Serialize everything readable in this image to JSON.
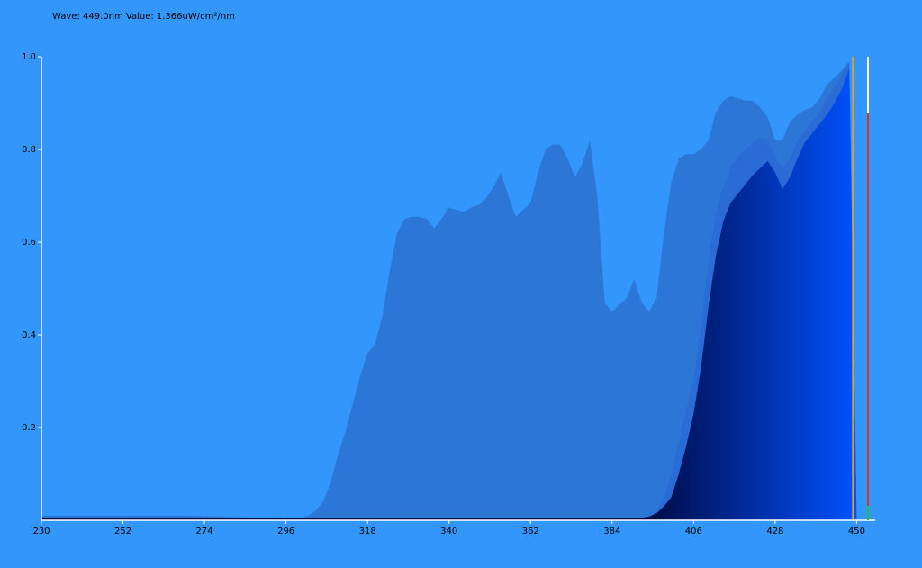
{
  "chart_data": {
    "type": "area",
    "header": "Wave: 449.0nm Value: 1.366uW/cm²/nm",
    "background": "#3396fb",
    "axis_color": "#ffffff",
    "cursor": 449,
    "cursor_color": "#e0a030",
    "xlim": [
      230,
      455
    ],
    "ylim": [
      0,
      1
    ],
    "xticks": [
      230,
      252,
      274,
      296,
      318,
      340,
      362,
      384,
      406,
      428,
      450
    ],
    "yticks": [
      0.2,
      0.4,
      0.6,
      0.8,
      {
        "value": 1,
        "label": "1.0"
      }
    ],
    "x": [
      230,
      250,
      270,
      290,
      300,
      302,
      304,
      306,
      308,
      310,
      312,
      314,
      316,
      318,
      320,
      322,
      324,
      326,
      328,
      330,
      332,
      334,
      336,
      338,
      340,
      342,
      344,
      346,
      348,
      350,
      352,
      354,
      356,
      358,
      360,
      362,
      364,
      366,
      368,
      370,
      372,
      374,
      376,
      378,
      380,
      382,
      384,
      386,
      388,
      390,
      392,
      394,
      396,
      398,
      400,
      402,
      404,
      406,
      408,
      410,
      412,
      414,
      416,
      418,
      420,
      422,
      424,
      426,
      428,
      430,
      432,
      434,
      436,
      438,
      440,
      442,
      444,
      446,
      448,
      450
    ],
    "series": [
      {
        "color": "#2c77d6",
        "values": [
          0.01,
          0.01,
          0.01,
          0.005,
          0.005,
          0.01,
          0.02,
          0.04,
          0.08,
          0.14,
          0.19,
          0.25,
          0.31,
          0.36,
          0.38,
          0.44,
          0.54,
          0.62,
          0.65,
          0.655,
          0.655,
          0.65,
          0.63,
          0.65,
          0.675,
          0.67,
          0.665,
          0.675,
          0.68,
          0.695,
          0.72,
          0.75,
          0.7,
          0.655,
          0.67,
          0.685,
          0.75,
          0.8,
          0.81,
          0.81,
          0.78,
          0.74,
          0.77,
          0.82,
          0.7,
          0.47,
          0.45,
          0.465,
          0.48,
          0.52,
          0.47,
          0.45,
          0.48,
          0.62,
          0.73,
          0.78,
          0.79,
          0.79,
          0.8,
          0.82,
          0.88,
          0.905,
          0.915,
          0.91,
          0.905,
          0.905,
          0.89,
          0.87,
          0.82,
          0.82,
          0.86,
          0.875,
          0.885,
          0.89,
          0.91,
          0.94,
          0.955,
          0.97,
          0.99,
          0
        ]
      },
      {
        "color": "#2a6bd6",
        "values": [
          0.005,
          0.005,
          0.005,
          0.005,
          0.005,
          0.005,
          0.005,
          0.005,
          0.005,
          0.005,
          0.005,
          0.005,
          0.005,
          0.005,
          0.005,
          0.005,
          0.005,
          0.005,
          0.005,
          0.005,
          0.005,
          0.005,
          0.005,
          0.005,
          0.005,
          0.005,
          0.005,
          0.005,
          0.005,
          0.005,
          0.005,
          0.005,
          0.005,
          0.005,
          0.005,
          0.005,
          0.005,
          0.005,
          0.005,
          0.005,
          0.005,
          0.005,
          0.005,
          0.005,
          0.005,
          0.005,
          0.005,
          0.005,
          0.005,
          0.005,
          0.005,
          0.005,
          0.02,
          0.05,
          0.1,
          0.17,
          0.24,
          0.3,
          0.42,
          0.56,
          0.66,
          0.72,
          0.76,
          0.785,
          0.8,
          0.815,
          0.825,
          0.82,
          0.785,
          0.76,
          0.78,
          0.82,
          0.84,
          0.86,
          0.88,
          0.91,
          0.935,
          0.96,
          0.99,
          0
        ]
      },
      {
        "gradient": [
          "#000c4a",
          "#0052ff"
        ],
        "values": [
          0.005,
          0.005,
          0.005,
          0.005,
          0.005,
          0.005,
          0.005,
          0.005,
          0.005,
          0.005,
          0.005,
          0.005,
          0.005,
          0.005,
          0.005,
          0.005,
          0.005,
          0.005,
          0.005,
          0.005,
          0.005,
          0.005,
          0.005,
          0.005,
          0.005,
          0.005,
          0.005,
          0.005,
          0.005,
          0.005,
          0.005,
          0.005,
          0.005,
          0.005,
          0.005,
          0.005,
          0.005,
          0.005,
          0.005,
          0.005,
          0.005,
          0.005,
          0.005,
          0.005,
          0.005,
          0.005,
          0.005,
          0.005,
          0.005,
          0.005,
          0.005,
          0.008,
          0.015,
          0.03,
          0.05,
          0.1,
          0.16,
          0.23,
          0.33,
          0.46,
          0.57,
          0.645,
          0.685,
          0.705,
          0.725,
          0.745,
          0.76,
          0.775,
          0.75,
          0.715,
          0.74,
          0.78,
          0.815,
          0.835,
          0.855,
          0.875,
          0.9,
          0.93,
          0.975,
          0
        ]
      }
    ]
  }
}
